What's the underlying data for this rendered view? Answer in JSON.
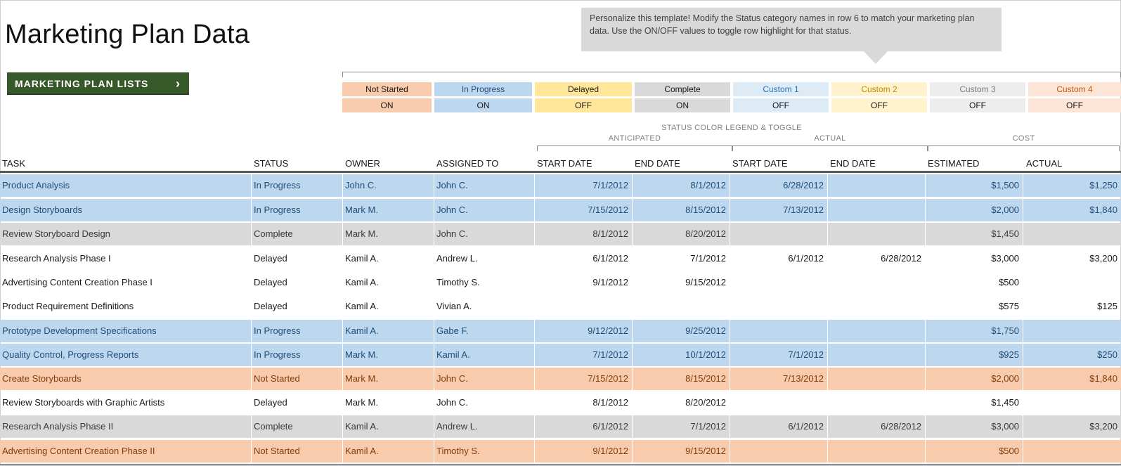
{
  "page_title": "Marketing Plan Data",
  "lists_button": {
    "label": "MARKETING PLAN LISTS",
    "icon": "chevron-right-icon"
  },
  "callout": {
    "text": "Personalize this template! Modify the Status category names in row 6 to match your marketing plan data. Use the ON/OFF values to toggle row highlight for that status."
  },
  "legend": {
    "title": "STATUS COLOR LEGEND & TOGGLE",
    "items": [
      {
        "name": "Not Started",
        "toggle": "ON"
      },
      {
        "name": "In Progress",
        "toggle": "ON"
      },
      {
        "name": "Delayed",
        "toggle": "OFF"
      },
      {
        "name": "Complete",
        "toggle": "ON"
      },
      {
        "name": "Custom 1",
        "toggle": "OFF"
      },
      {
        "name": "Custom 2",
        "toggle": "OFF"
      },
      {
        "name": "Custom 3",
        "toggle": "OFF"
      },
      {
        "name": "Custom 4",
        "toggle": "OFF"
      }
    ]
  },
  "column_groups": {
    "anticipated": "ANTICIPATED",
    "actual": "ACTUAL",
    "cost": "COST"
  },
  "columns": {
    "task": "TASK",
    "status": "STATUS",
    "owner": "OWNER",
    "assigned_to": "ASSIGNED TO",
    "ant_start": "START DATE",
    "ant_end": "END DATE",
    "act_start": "START DATE",
    "act_end": "END DATE",
    "cost_est": "ESTIMATED",
    "cost_act": "ACTUAL"
  },
  "colors": {
    "not_started_bg": "#f8cbad",
    "not_started_text": "#833c0b",
    "in_progress_bg": "#bdd7ee",
    "in_progress_text": "#1f4e79",
    "delayed_bg": "#ffe699",
    "delayed_text": "#1a1a1a",
    "complete_bg": "#d9d9d9",
    "complete_text": "#3a3a3a"
  },
  "rows": [
    {
      "task": "Product Analysis",
      "status": "In Progress",
      "owner": "John C.",
      "assigned_to": "John C.",
      "ant_start": "7/1/2012",
      "ant_end": "8/1/2012",
      "act_start": "6/28/2012",
      "act_end": "",
      "cost_est": "$1,500",
      "cost_act": "$1,250",
      "highlight": "in_progress"
    },
    {
      "task": "Design Storyboards",
      "status": "In Progress",
      "owner": "Mark M.",
      "assigned_to": "John C.",
      "ant_start": "7/15/2012",
      "ant_end": "8/15/2012",
      "act_start": "7/13/2012",
      "act_end": "",
      "cost_est": "$2,000",
      "cost_act": "$1,840",
      "highlight": "in_progress"
    },
    {
      "task": "Review Storyboard Design",
      "status": "Complete",
      "owner": "Mark M.",
      "assigned_to": "John C.",
      "ant_start": "8/1/2012",
      "ant_end": "8/20/2012",
      "act_start": "",
      "act_end": "",
      "cost_est": "$1,450",
      "cost_act": "",
      "highlight": "complete"
    },
    {
      "task": "Research Analysis Phase I",
      "status": "Delayed",
      "owner": "Kamil A.",
      "assigned_to": "Andrew L.",
      "ant_start": "6/1/2012",
      "ant_end": "7/1/2012",
      "act_start": "6/1/2012",
      "act_end": "6/28/2012",
      "cost_est": "$3,000",
      "cost_act": "$3,200",
      "highlight": "none"
    },
    {
      "task": "Advertising Content Creation Phase I",
      "status": "Delayed",
      "owner": "Kamil A.",
      "assigned_to": "Timothy S.",
      "ant_start": "9/1/2012",
      "ant_end": "9/15/2012",
      "act_start": "",
      "act_end": "",
      "cost_est": "$500",
      "cost_act": "",
      "highlight": "none"
    },
    {
      "task": "Product Requirement Definitions",
      "status": "Delayed",
      "owner": "Kamil A.",
      "assigned_to": "Vivian A.",
      "ant_start": "",
      "ant_end": "",
      "act_start": "",
      "act_end": "",
      "cost_est": "$575",
      "cost_act": "$125",
      "highlight": "none"
    },
    {
      "task": "Prototype Development Specifications",
      "status": "In Progress",
      "owner": "Kamil A.",
      "assigned_to": "Gabe F.",
      "ant_start": "9/12/2012",
      "ant_end": "9/25/2012",
      "act_start": "",
      "act_end": "",
      "cost_est": "$1,750",
      "cost_act": "",
      "highlight": "in_progress"
    },
    {
      "task": "Quality Control, Progress Reports",
      "status": "In Progress",
      "owner": "Mark M.",
      "assigned_to": "Kamil A.",
      "ant_start": "7/1/2012",
      "ant_end": "10/1/2012",
      "act_start": "7/1/2012",
      "act_end": "",
      "cost_est": "$925",
      "cost_act": "$250",
      "highlight": "in_progress"
    },
    {
      "task": "Create Storyboards",
      "status": "Not Started",
      "owner": "Mark M.",
      "assigned_to": "John C.",
      "ant_start": "7/15/2012",
      "ant_end": "8/15/2012",
      "act_start": "7/13/2012",
      "act_end": "",
      "cost_est": "$2,000",
      "cost_act": "$1,840",
      "highlight": "not_started"
    },
    {
      "task": "Review Storyboards with Graphic Artists",
      "status": "Delayed",
      "owner": "Mark M.",
      "assigned_to": "John C.",
      "ant_start": "8/1/2012",
      "ant_end": "8/20/2012",
      "act_start": "",
      "act_end": "",
      "cost_est": "$1,450",
      "cost_act": "",
      "highlight": "none"
    },
    {
      "task": "Research Analysis Phase II",
      "status": "Complete",
      "owner": "Kamil A.",
      "assigned_to": "Andrew L.",
      "ant_start": "6/1/2012",
      "ant_end": "7/1/2012",
      "act_start": "6/1/2012",
      "act_end": "6/28/2012",
      "cost_est": "$3,000",
      "cost_act": "$3,200",
      "highlight": "complete"
    },
    {
      "task": "Advertising Content Creation Phase II",
      "status": "Not Started",
      "owner": "Kamil A.",
      "assigned_to": "Timothy S.",
      "ant_start": "9/1/2012",
      "ant_end": "9/15/2012",
      "act_start": "",
      "act_end": "",
      "cost_est": "$500",
      "cost_act": "",
      "highlight": "not_started"
    }
  ]
}
